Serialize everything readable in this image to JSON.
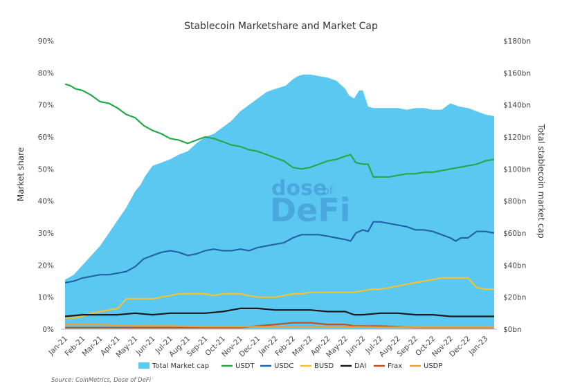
{
  "chart_data": {
    "type": "area",
    "title": "Stablecoin Marketshare and Market Cap",
    "ylabel": "Market share",
    "y2label": "Total stablecoin market cap",
    "ylim": [
      0,
      90
    ],
    "y2lim": [
      0,
      180
    ],
    "yticks": [
      "0%",
      "10%",
      "20%",
      "30%",
      "40%",
      "50%",
      "60%",
      "70%",
      "80%",
      "90%"
    ],
    "y2ticks": [
      "$0bn",
      "$20bn",
      "$40bn",
      "$60bn",
      "$80bn",
      "$100bn",
      "$120bn",
      "$140bn",
      "$160bn",
      "$180bn"
    ],
    "categories": [
      "Jan-21",
      "Feb-21",
      "Mar-21",
      "Apr-21",
      "May-21",
      "Jun-21",
      "Jul-21",
      "Aug-21",
      "Sep-21",
      "Oct-21",
      "Nov-21",
      "Dec-21",
      "Jan-22",
      "Feb-22",
      "Mar-22",
      "Apr-22",
      "May-22",
      "Jun-22",
      "Jul-22",
      "Aug-22",
      "Sep-22",
      "Oct-22",
      "Nov-22",
      "Dec-22",
      "Jan-23"
    ],
    "grid": false,
    "legend_position": "bottom",
    "area": {
      "name": "Total Market cap",
      "color": "#5bc8f2",
      "x": [
        0,
        0.5,
        1,
        1.5,
        2,
        2.5,
        3,
        3.5,
        4,
        4.3,
        4.6,
        5,
        5.5,
        6,
        6.5,
        7,
        7.5,
        8,
        8.5,
        9,
        9.5,
        10,
        10.5,
        11,
        11.5,
        12,
        12.3,
        12.6,
        13,
        13.3,
        13.6,
        14,
        14.5,
        15,
        15.5,
        16,
        16.2,
        16.5,
        16.8,
        17,
        17.3,
        17.6,
        18,
        18.5,
        19,
        19.5,
        20,
        20.5,
        21,
        21.5,
        22,
        22.5,
        23,
        23.5,
        24,
        24.5
      ],
      "values": [
        31,
        34,
        40,
        46,
        52,
        60,
        68,
        76,
        86,
        90,
        96,
        102,
        104,
        106,
        109,
        111,
        116,
        120,
        122,
        126,
        130,
        136,
        140,
        144,
        148,
        150,
        151,
        152,
        156,
        158,
        159,
        159,
        158,
        157,
        155,
        150,
        146,
        144,
        149,
        149,
        139,
        138,
        138,
        138,
        138,
        137,
        138,
        138,
        137,
        137,
        141,
        139,
        138,
        136,
        134,
        133
      ]
    },
    "series": [
      {
        "name": "USDT",
        "color": "#22a94a",
        "x": [
          0,
          0.3,
          0.6,
          1,
          1.5,
          2,
          2.5,
          3,
          3.5,
          4,
          4.5,
          5,
          5.5,
          6,
          6.5,
          7,
          7.5,
          8,
          8.5,
          9,
          9.5,
          10,
          10.5,
          11,
          11.5,
          12,
          12.5,
          13,
          13.5,
          14,
          14.5,
          15,
          15.5,
          16,
          16.3,
          16.6,
          17,
          17.3,
          17.6,
          18,
          18.5,
          19,
          19.5,
          20,
          20.5,
          21,
          21.5,
          22,
          22.5,
          23,
          23.5,
          24,
          24.5
        ],
        "values": [
          76.5,
          76,
          75,
          74.5,
          73,
          71,
          70.5,
          69,
          67,
          66,
          63.5,
          62,
          61,
          59.5,
          59,
          58,
          59,
          60,
          59.5,
          58.5,
          57.5,
          57,
          56,
          55.5,
          54.5,
          53.5,
          52.5,
          50.5,
          50,
          50.5,
          51.5,
          52.5,
          53,
          54,
          54.5,
          52,
          51.5,
          51.5,
          47.5,
          47.5,
          47.5,
          48,
          48.5,
          48.5,
          49,
          49,
          49.5,
          50,
          50.5,
          51,
          51.5,
          52.5,
          53
        ]
      },
      {
        "name": "USDC",
        "color": "#1f64a8",
        "x": [
          0,
          0.5,
          1,
          1.5,
          2,
          2.5,
          3,
          3.5,
          4,
          4.5,
          5,
          5.5,
          6,
          6.5,
          7,
          7.5,
          8,
          8.5,
          9,
          9.5,
          10,
          10.5,
          11,
          11.5,
          12,
          12.5,
          13,
          13.5,
          14,
          14.5,
          15,
          15.5,
          16,
          16.3,
          16.6,
          17,
          17.3,
          17.6,
          18,
          18.5,
          19,
          19.5,
          20,
          20.5,
          21,
          21.5,
          22,
          22.3,
          22.6,
          23,
          23.5,
          24,
          24.5
        ],
        "values": [
          14.5,
          15,
          16,
          16.5,
          17,
          17,
          17.5,
          18,
          19.5,
          22,
          23,
          24,
          24.5,
          24,
          23,
          23.5,
          24.5,
          25,
          24.5,
          24.5,
          25,
          24.5,
          25.5,
          26,
          26.5,
          27,
          28.5,
          29.5,
          29.5,
          29.5,
          29,
          28.5,
          28,
          27.5,
          30,
          31,
          30.5,
          33.5,
          33.5,
          33,
          32.5,
          32,
          31,
          31,
          30.5,
          29.5,
          28.5,
          27.5,
          28.5,
          28.5,
          30.5,
          30.5,
          30
        ]
      },
      {
        "name": "BUSD",
        "color": "#f2c230",
        "x": [
          0,
          0.5,
          1,
          1.5,
          2,
          2.5,
          3,
          3.5,
          4,
          4.5,
          5,
          5.5,
          6,
          6.5,
          7,
          7.5,
          8,
          8.5,
          9,
          9.5,
          10,
          10.5,
          11,
          11.5,
          12,
          12.5,
          13,
          13.5,
          14,
          14.5,
          15,
          15.5,
          16,
          16.5,
          17,
          17.5,
          18,
          18.5,
          19,
          19.5,
          20,
          20.5,
          21,
          21.5,
          22,
          22.5,
          23,
          23.5,
          24,
          24.5
        ],
        "values": [
          3.5,
          3.5,
          4,
          5,
          5.5,
          6,
          6.5,
          9.5,
          9.5,
          9.5,
          9.5,
          10,
          10.5,
          11,
          11,
          11,
          11,
          10.5,
          11,
          11,
          11,
          10.5,
          10,
          10,
          10,
          10.5,
          11,
          11,
          11.5,
          11.5,
          11.5,
          11.5,
          11.5,
          11.5,
          12,
          12.5,
          12.5,
          13,
          13.5,
          14,
          14.5,
          15,
          15.5,
          16,
          16,
          16,
          16,
          13,
          12.5,
          12.5
        ]
      },
      {
        "name": "DAI",
        "color": "#1a1a1a",
        "x": [
          0,
          1,
          2,
          3,
          4,
          5,
          6,
          7,
          8,
          9,
          10,
          11,
          12,
          13,
          14,
          15,
          16,
          16.5,
          17,
          18,
          19,
          20,
          21,
          22,
          23,
          24,
          24.5
        ],
        "values": [
          4,
          4.5,
          4.5,
          4.5,
          5,
          4.5,
          5,
          5,
          5,
          5.5,
          6.5,
          6.5,
          6,
          6,
          6,
          5.5,
          5.5,
          4.5,
          4.5,
          5,
          5,
          4.5,
          4.5,
          4,
          4,
          4,
          4
        ]
      },
      {
        "name": "Frax",
        "color": "#c0501e",
        "x": [
          0,
          2,
          4,
          6,
          8,
          10,
          11,
          12,
          13,
          14,
          15,
          16,
          16.5,
          17,
          18,
          20,
          22,
          24,
          24.5
        ],
        "values": [
          0.5,
          0.5,
          0.5,
          0.5,
          0.5,
          0.5,
          1,
          1.5,
          2,
          2,
          1.5,
          1.5,
          1,
          1,
          1,
          0.5,
          0.5,
          0.5,
          0.5
        ]
      },
      {
        "name": "USDP",
        "color": "#f0a030",
        "x": [
          0,
          2,
          4,
          6,
          8,
          10,
          12,
          14,
          16,
          18,
          20,
          22,
          24,
          24.5
        ],
        "values": [
          1.5,
          1.5,
          1,
          1,
          0.8,
          0.8,
          0.8,
          0.8,
          0.8,
          0.6,
          0.6,
          0.6,
          0.6,
          0.6
        ]
      }
    ]
  },
  "legend": [
    {
      "label": "Total Market cap",
      "kind": "area",
      "color": "#5bc8f2"
    },
    {
      "label": "USDT",
      "kind": "line",
      "color": "#22a94a"
    },
    {
      "label": "USDC",
      "kind": "line",
      "color": "#1f64a8"
    },
    {
      "label": "BUSD",
      "kind": "line",
      "color": "#f2c230"
    },
    {
      "label": "DAI",
      "kind": "line",
      "color": "#1a1a1a"
    },
    {
      "label": "Frax",
      "kind": "line",
      "color": "#c0501e"
    },
    {
      "label": "USDP",
      "kind": "line",
      "color": "#f0a030"
    }
  ],
  "watermark": {
    "line1": "dose",
    "line1b": "of",
    "line2": "DeFi"
  },
  "source": "Source: CoinMetrics, Dose of DeFi"
}
